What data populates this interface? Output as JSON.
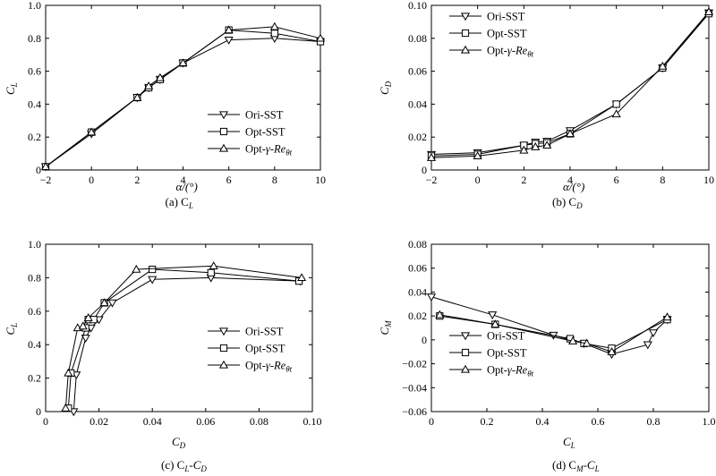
{
  "chart_data": [
    {
      "type": "line",
      "caption": "(a) C",
      "caption_sub": "L",
      "xlabel": "α/(°)",
      "ylabel": "C",
      "ylabel_sub": "L",
      "xlim": [
        -2,
        10
      ],
      "ylim": [
        0,
        1.0
      ],
      "xticks": [
        -2,
        0,
        2,
        4,
        6,
        8,
        10
      ],
      "xtick_labels": [
        "−2",
        "0",
        "2",
        "4",
        "6",
        "8",
        "10"
      ],
      "yticks": [
        0,
        0.2,
        0.4,
        0.6,
        0.8,
        1.0
      ],
      "ytick_labels": [
        "0",
        "0.2",
        "0.4",
        "0.6",
        "0.8",
        "1.0"
      ],
      "legend_position": "bottom-right",
      "series": [
        {
          "name": "Ori-SST",
          "marker": "triangle-down",
          "x": [
            -2,
            0,
            2,
            2.5,
            3,
            4,
            6,
            8,
            10
          ],
          "y": [
            0.02,
            0.22,
            0.44,
            0.5,
            0.55,
            0.65,
            0.79,
            0.8,
            0.78
          ]
        },
        {
          "name": "Opt-SST",
          "marker": "square",
          "x": [
            -2,
            0,
            2,
            2.5,
            3,
            4,
            6,
            8,
            10
          ],
          "y": [
            0.02,
            0.23,
            0.44,
            0.5,
            0.55,
            0.65,
            0.85,
            0.83,
            0.78
          ]
        },
        {
          "name": "Opt-γ-Re",
          "name_sub": "θt",
          "marker": "triangle-up",
          "x": [
            -2,
            0,
            2,
            2.5,
            3,
            4,
            6,
            8,
            10
          ],
          "y": [
            0.02,
            0.23,
            0.44,
            0.51,
            0.56,
            0.65,
            0.85,
            0.87,
            0.8
          ]
        }
      ]
    },
    {
      "type": "line",
      "caption": "(b) C",
      "caption_sub": "D",
      "xlabel": "α/(°)",
      "ylabel": "C",
      "ylabel_sub": "D",
      "xlim": [
        -2,
        10
      ],
      "ylim": [
        0,
        0.1
      ],
      "xticks": [
        -2,
        0,
        2,
        4,
        6,
        8,
        10
      ],
      "xtick_labels": [
        "−2",
        "0",
        "2",
        "4",
        "6",
        "8",
        "10"
      ],
      "yticks": [
        0,
        0.02,
        0.04,
        0.06,
        0.08,
        0.1
      ],
      "ytick_labels": [
        "0",
        "0.02",
        "0.04",
        "0.06",
        "0.08",
        "0.10"
      ],
      "legend_position": "top-left",
      "series": [
        {
          "name": "Ori-SST",
          "marker": "triangle-down",
          "x": [
            -2,
            0,
            2,
            2.5,
            3,
            4,
            6,
            8,
            10
          ],
          "y": [
            0.0095,
            0.0105,
            0.015,
            0.017,
            0.0175,
            0.024,
            0.04,
            0.062,
            0.0955
          ]
        },
        {
          "name": "Opt-SST",
          "marker": "square",
          "x": [
            -2,
            0,
            2,
            2.5,
            3,
            4,
            6,
            8,
            10
          ],
          "y": [
            0.0085,
            0.0095,
            0.015,
            0.016,
            0.0165,
            0.022,
            0.04,
            0.062,
            0.095
          ]
        },
        {
          "name": "Opt-γ-Re",
          "name_sub": "θt",
          "marker": "triangle-up",
          "x": [
            -2,
            0,
            2,
            2.5,
            3,
            4,
            6,
            8,
            10
          ],
          "y": [
            0.0075,
            0.0085,
            0.012,
            0.014,
            0.015,
            0.022,
            0.034,
            0.063,
            0.096
          ]
        }
      ]
    },
    {
      "type": "line",
      "caption": "(c) C",
      "caption_sub": "L",
      "caption_rest": "-C",
      "caption_sub2": "D",
      "xlabel": "C",
      "xlabel_sub": "D",
      "ylabel": "C",
      "ylabel_sub": "L",
      "xlim": [
        0,
        0.1
      ],
      "ylim": [
        0,
        1.0
      ],
      "xticks": [
        0,
        0.02,
        0.04,
        0.06,
        0.08,
        0.1
      ],
      "xtick_labels": [
        "0",
        "0.02",
        "0.04",
        "0.06",
        "0.08",
        "0.10"
      ],
      "yticks": [
        0,
        0.2,
        0.4,
        0.6,
        0.8,
        1.0
      ],
      "ytick_labels": [
        "0",
        "0.2",
        "0.4",
        "0.6",
        "0.8",
        "1.0"
      ],
      "legend_position": "bottom-right",
      "series": [
        {
          "name": "Ori-SST",
          "marker": "triangle-down",
          "x": [
            0.0105,
            0.0115,
            0.015,
            0.017,
            0.02,
            0.025,
            0.04,
            0.062,
            0.0955
          ],
          "y": [
            0.0,
            0.22,
            0.44,
            0.5,
            0.55,
            0.65,
            0.79,
            0.8,
            0.78
          ]
        },
        {
          "name": "Opt-SST",
          "marker": "square",
          "x": [
            0.0085,
            0.0095,
            0.015,
            0.016,
            0.018,
            0.022,
            0.04,
            0.062,
            0.095
          ],
          "y": [
            0.02,
            0.23,
            0.5,
            0.55,
            0.55,
            0.65,
            0.85,
            0.83,
            0.78
          ]
        },
        {
          "name": "Opt-γ-Re",
          "name_sub": "θt",
          "marker": "triangle-up",
          "x": [
            0.0075,
            0.0085,
            0.012,
            0.014,
            0.016,
            0.022,
            0.034,
            0.063,
            0.096
          ],
          "y": [
            0.02,
            0.23,
            0.5,
            0.51,
            0.56,
            0.65,
            0.85,
            0.87,
            0.8
          ]
        }
      ]
    },
    {
      "type": "line",
      "caption": "(d) C",
      "caption_sub": "M",
      "caption_rest": "-C",
      "caption_sub2": "L",
      "xlabel": "C",
      "xlabel_sub": "L",
      "ylabel": "C",
      "ylabel_sub": "M",
      "xlim": [
        0,
        1.0
      ],
      "ylim": [
        -0.06,
        0.08
      ],
      "xticks": [
        0,
        0.2,
        0.4,
        0.6,
        0.8,
        1.0
      ],
      "xtick_labels": [
        "0",
        "0.2",
        "0.4",
        "0.6",
        "0.8",
        "1.0"
      ],
      "yticks": [
        -0.06,
        -0.04,
        -0.02,
        0,
        0.02,
        0.04,
        0.06,
        0.08
      ],
      "ytick_labels": [
        "−0.06",
        "−0.04",
        "−0.02",
        "0",
        "0.02",
        "0.04",
        "0.06",
        "0.08"
      ],
      "legend_position": "bottom-left",
      "series": [
        {
          "name": "Ori-SST",
          "marker": "triangle-down",
          "x": [
            0.0,
            0.22,
            0.44,
            0.5,
            0.55,
            0.65,
            0.78,
            0.8,
            0.85
          ],
          "y": [
            0.036,
            0.021,
            0.004,
            0.0,
            -0.003,
            -0.012,
            -0.004,
            0.006,
            0.017
          ]
        },
        {
          "name": "Opt-SST",
          "marker": "square",
          "x": [
            0.03,
            0.23,
            0.5,
            0.55,
            0.65,
            0.85
          ],
          "y": [
            0.02,
            0.013,
            0.001,
            -0.003,
            -0.007,
            0.017
          ]
        },
        {
          "name": "Opt-γ-Re",
          "name_sub": "θt",
          "marker": "triangle-up",
          "x": [
            0.03,
            0.23,
            0.51,
            0.56,
            0.65,
            0.85
          ],
          "y": [
            0.021,
            0.013,
            -0.001,
            -0.003,
            -0.01,
            0.019
          ]
        }
      ]
    }
  ]
}
